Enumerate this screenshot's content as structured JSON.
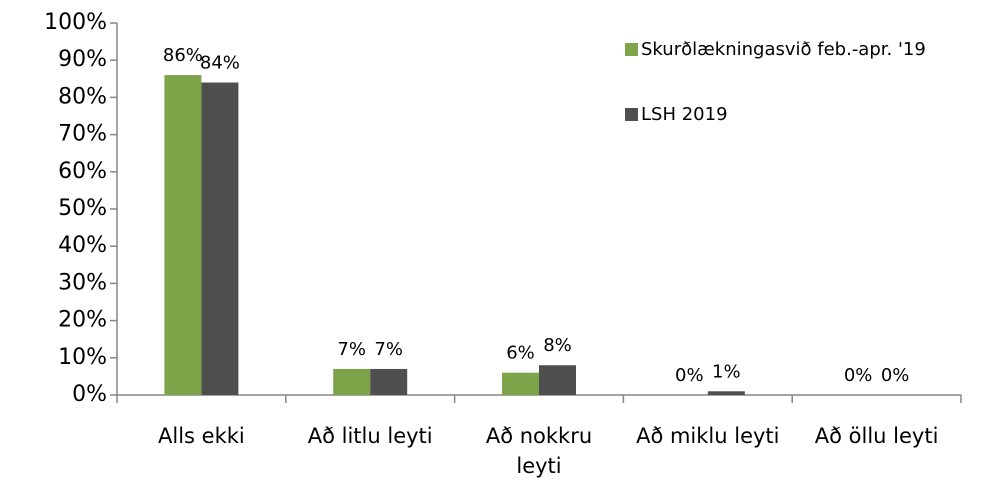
{
  "chart_data": {
    "type": "bar",
    "categories": [
      "Alls ekki",
      "Að litlu leyti",
      "Að nokkru leyti",
      "Að miklu leyti",
      "Að öllu leyti"
    ],
    "series": [
      {
        "name": "Skurðlækningasvið feb.-apr. '19",
        "color": "#7ea44a",
        "values": [
          86,
          7,
          6,
          0,
          0
        ],
        "value_labels": [
          "86%",
          "7%",
          "6%",
          "0%",
          "0%"
        ]
      },
      {
        "name": "LSH 2019",
        "color": "#4f4f4f",
        "values": [
          84,
          7,
          8,
          1,
          0
        ],
        "value_labels": [
          "84%",
          "7%",
          "8%",
          "1%",
          "0%"
        ]
      }
    ],
    "ylim": [
      0,
      100
    ],
    "yticks": [
      {
        "value": 0,
        "label": "0%"
      },
      {
        "value": 10,
        "label": "10%"
      },
      {
        "value": 20,
        "label": "20%"
      },
      {
        "value": 30,
        "label": "30%"
      },
      {
        "value": 40,
        "label": "40%"
      },
      {
        "value": 50,
        "label": "50%"
      },
      {
        "value": 60,
        "label": "60%"
      },
      {
        "value": 70,
        "label": "70%"
      },
      {
        "value": 80,
        "label": "80%"
      },
      {
        "value": 90,
        "label": "90%"
      },
      {
        "value": 100,
        "label": "100%"
      }
    ],
    "legend": "right",
    "grid": false
  }
}
